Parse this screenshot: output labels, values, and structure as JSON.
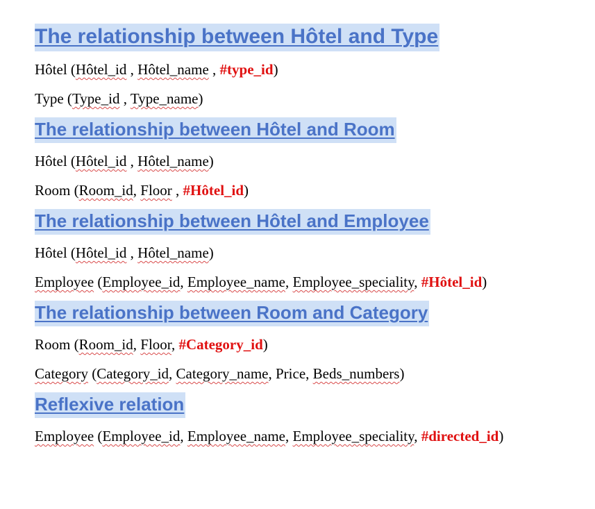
{
  "sections": [
    {
      "heading": "The relationship between Hôtel and Type",
      "relations": [
        [
          "Hôtel (",
          "Hôtel_id",
          " , ",
          "Hôtel_name",
          " , ",
          "#type_id",
          ")"
        ],
        [
          "Type (",
          "Type_id",
          " , ",
          "Type_name",
          ")"
        ]
      ]
    },
    {
      "heading": "The relationship between Hôtel and Room",
      "relations": [
        [
          "Hôtel (",
          "Hôtel_id",
          " , ",
          "Hôtel_name",
          ")"
        ],
        [
          "Room (",
          "Room_id",
          ", ",
          "Floor",
          " , ",
          "#Hôtel_id",
          ")"
        ]
      ]
    },
    {
      "heading": "The relationship between Hôtel and Employee",
      "relations": [
        [
          "Hôtel (",
          "Hôtel_id",
          " , ",
          "Hôtel_name",
          ")"
        ],
        [
          "Employee",
          " (",
          "Employee_id",
          ", ",
          "Employee_name",
          ", ",
          "Employee_speciality",
          ", ",
          "#Hôtel_id",
          ")"
        ]
      ]
    },
    {
      "heading": "The relationship between Room and Category",
      "relations": [
        [
          "Room (",
          "Room_id",
          ", ",
          "Floor",
          ", ",
          "#Category_id",
          ")"
        ],
        [
          "Category",
          " (",
          "Category_id",
          ", ",
          "Category_name",
          ", Price, ",
          "Beds_numbers",
          ")"
        ]
      ]
    },
    {
      "heading": "Reflexive relation",
      "relations": [
        [
          "Employee",
          " (",
          "Employee_id",
          ", ",
          "Employee_name",
          ", ",
          "Employee_speciality",
          ", ",
          "#directed_id",
          ")"
        ]
      ]
    }
  ]
}
